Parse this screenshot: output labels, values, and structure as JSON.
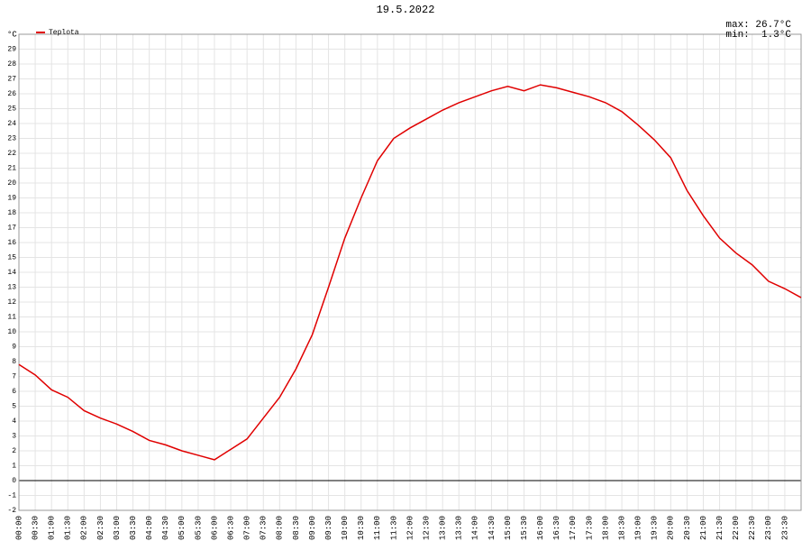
{
  "chart_data": {
    "type": "line",
    "title": "19.5.2022",
    "y_label": "°C",
    "categories": [
      "00:00",
      "00:30",
      "01:00",
      "01:30",
      "02:00",
      "02:30",
      "03:00",
      "03:30",
      "04:00",
      "04:30",
      "05:00",
      "05:30",
      "06:00",
      "06:30",
      "07:00",
      "07:30",
      "08:00",
      "08:30",
      "09:00",
      "09:30",
      "10:00",
      "10:30",
      "11:00",
      "11:30",
      "12:00",
      "12:30",
      "13:00",
      "13:30",
      "14:00",
      "14:30",
      "15:00",
      "15:30",
      "16:00",
      "16:30",
      "17:00",
      "17:30",
      "18:00",
      "18:30",
      "19:00",
      "19:30",
      "20:00",
      "20:30",
      "21:00",
      "21:30",
      "22:00",
      "22:30",
      "23:00",
      "23:30",
      null
    ],
    "series": [
      {
        "name": "Teplota",
        "color": "#e00000",
        "values": [
          7.8,
          7.1,
          6.1,
          5.6,
          4.7,
          4.2,
          3.8,
          3.3,
          2.7,
          2.4,
          2.0,
          1.7,
          1.4,
          2.1,
          2.8,
          4.2,
          5.6,
          7.5,
          9.8,
          13.0,
          16.3,
          19.0,
          21.5,
          23.0,
          23.7,
          24.3,
          24.9,
          25.4,
          25.8,
          26.2,
          26.5,
          26.2,
          26.6,
          26.4,
          26.1,
          25.8,
          25.4,
          24.8,
          23.9,
          22.9,
          21.7,
          19.5,
          17.8,
          16.3,
          15.3,
          14.5,
          13.4,
          12.9,
          12.3
        ]
      }
    ],
    "annotations": [
      {
        "text": "max: 26.7°C",
        "color": "#e00000"
      },
      {
        "text": "min:  1.3°C",
        "color": "#000080"
      }
    ],
    "ylim": [
      -2,
      30
    ],
    "yticks": [
      -2,
      -1,
      0,
      1,
      2,
      3,
      4,
      5,
      6,
      7,
      8,
      9,
      10,
      11,
      12,
      13,
      14,
      15,
      16,
      17,
      18,
      19,
      20,
      21,
      22,
      23,
      24,
      25,
      26,
      27,
      28,
      29
    ],
    "grid": true,
    "grid_color": "#e4e4e4",
    "zero_line_color": "#000000"
  }
}
